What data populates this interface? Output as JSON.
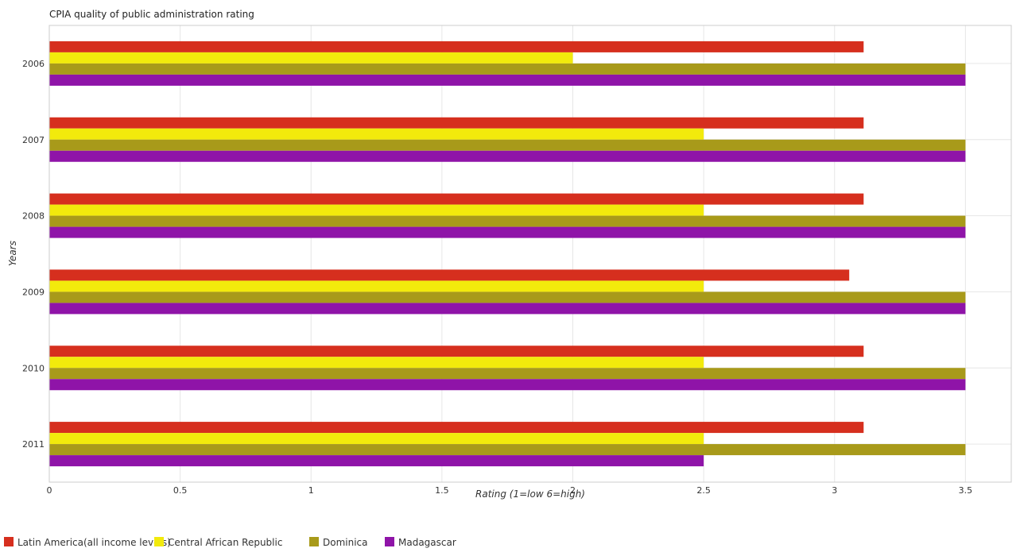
{
  "chart_data": {
    "type": "bar",
    "orientation": "horizontal",
    "title": "CPIA quality of public administration rating",
    "xlabel": "Rating (1=low 6=high)",
    "ylabel": "Years",
    "xlim": [
      0,
      3.675
    ],
    "xticks": [
      0,
      0.5,
      1,
      1.5,
      2,
      2.5,
      3,
      3.5
    ],
    "xtick_labels": [
      "0",
      "0.5",
      "1",
      "1.5",
      "2",
      "2.5",
      "3",
      "3.5"
    ],
    "categories": [
      "2006",
      "2007",
      "2008",
      "2009",
      "2010",
      "2011"
    ],
    "series": [
      {
        "name": "Latin America(all income levels)",
        "color": "#d62f1e",
        "values": [
          3.111,
          3.111,
          3.111,
          3.056,
          3.111,
          3.111
        ]
      },
      {
        "name": "Central African Republic",
        "color": "#f2ea0c",
        "values": [
          2.0,
          2.5,
          2.5,
          2.5,
          2.5,
          2.5
        ]
      },
      {
        "name": "Dominica",
        "color": "#a89a1a",
        "values": [
          3.5,
          3.5,
          3.5,
          3.5,
          3.5,
          3.5
        ]
      },
      {
        "name": "Madagascar",
        "color": "#8f14a8",
        "values": [
          3.5,
          3.5,
          3.5,
          3.5,
          3.5,
          2.5
        ]
      }
    ],
    "grid": true,
    "legend_position": "bottom-left"
  }
}
